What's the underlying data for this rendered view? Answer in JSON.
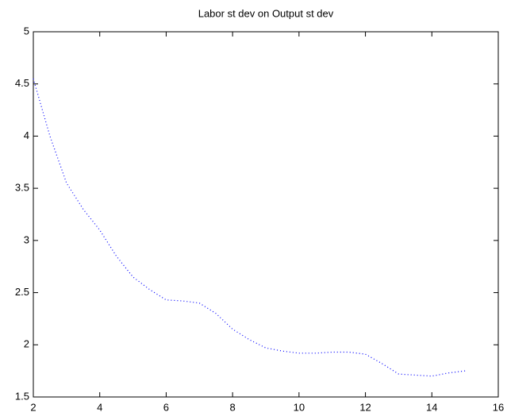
{
  "chart_data": {
    "type": "line",
    "title": "Labor st dev on Output st dev",
    "x": [
      2,
      2.5,
      3,
      3.5,
      4,
      4.5,
      5,
      5.5,
      6,
      6.5,
      7,
      7.5,
      8,
      8.5,
      9,
      9.5,
      10,
      10.5,
      11,
      11.5,
      12,
      12.5,
      13,
      13.5,
      14,
      14.5,
      15
    ],
    "series": [
      {
        "color": "#0000ff",
        "values": [
          4.55,
          4.0,
          3.55,
          3.3,
          3.1,
          2.85,
          2.65,
          2.53,
          2.43,
          2.42,
          2.4,
          2.3,
          2.15,
          2.05,
          1.97,
          1.94,
          1.92,
          1.92,
          1.93,
          1.93,
          1.91,
          1.82,
          1.72,
          1.71,
          1.7,
          1.73,
          1.75
        ]
      }
    ],
    "xlim": [
      2,
      16
    ],
    "xticks": [
      2,
      4,
      6,
      8,
      10,
      12,
      14,
      16
    ],
    "ylim": [
      1.5,
      5
    ],
    "yticks": [
      1.5,
      2,
      2.5,
      3,
      3.5,
      4,
      4.5,
      5
    ],
    "grid": false
  }
}
